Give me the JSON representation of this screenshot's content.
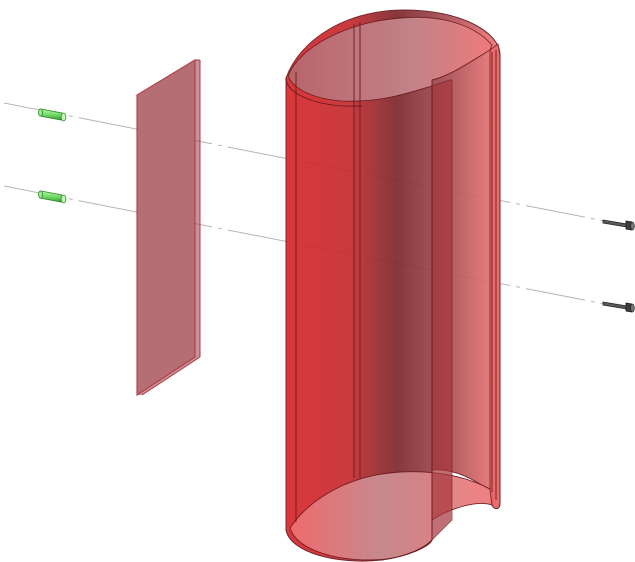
{
  "colors": {
    "background": "#ffffff",
    "shell_red": "#d9282c",
    "shell_red_light": "#f07a7a",
    "shell_red_dark": "#7d2a2e",
    "plate_fill": "#b46a70",
    "plate_edge": "#b03a40",
    "edge_dark": "#6b1a1e",
    "pin_green": "#7ee07a",
    "pin_green_dark": "#2f8a2c",
    "screw_gray": "#4a4a4a",
    "axis_line": "#b5b5b5"
  },
  "parts": {
    "pins": {
      "count": 2,
      "icon": "cylindrical-dowel-pin",
      "color": "green"
    },
    "plate": {
      "count": 1,
      "icon": "flat-panel",
      "color": "translucent red"
    },
    "shell": {
      "count": 1,
      "icon": "split-cylindrical-sleeve",
      "color": "translucent red"
    },
    "screws": {
      "count": 2,
      "icon": "machine-screw",
      "color": "dark gray"
    }
  }
}
